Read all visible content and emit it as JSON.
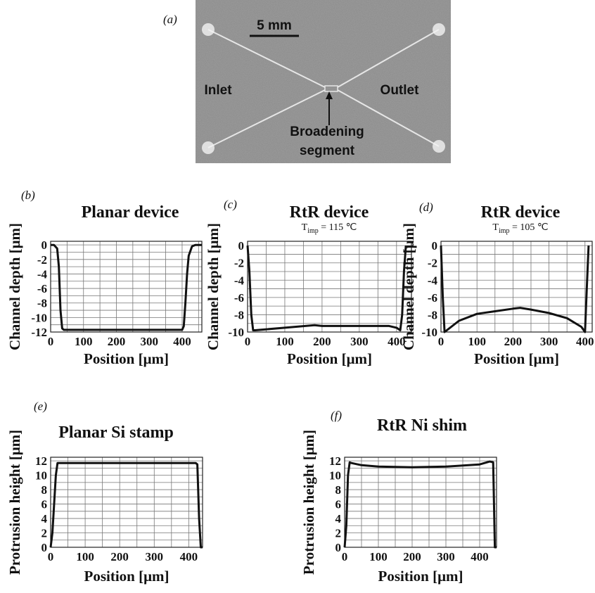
{
  "photo": {
    "panel": "(a)",
    "scale_bar": "5 mm",
    "inlet": "Inlet",
    "outlet": "Outlet",
    "segment_label": [
      "Broadening",
      "segment"
    ]
  },
  "chart_data": [
    {
      "type": "line",
      "panel": "(b)",
      "title": "Planar device",
      "x_label": "Position [μm]",
      "y_label": "Channel depth [μm]",
      "xlim": [
        0,
        460
      ],
      "xticks": [
        0,
        100,
        200,
        300,
        400
      ],
      "xminor": [
        50,
        150,
        250,
        350,
        450
      ],
      "ylim": [
        -12,
        0.5
      ],
      "yticks": [
        0,
        -2,
        -4,
        -6,
        -8,
        -10,
        -12
      ],
      "yminor": [
        -1,
        -3,
        -5,
        -7,
        -9,
        -11
      ],
      "grid": true,
      "x": [
        0,
        10,
        20,
        25,
        30,
        35,
        40,
        100,
        200,
        300,
        400,
        405,
        410,
        415,
        420,
        430,
        440,
        460
      ],
      "series": [
        {
          "color": "#111111",
          "values": [
            0,
            0,
            -0.5,
            -3,
            -9,
            -11.5,
            -11.7,
            -11.7,
            -11.7,
            -11.7,
            -11.7,
            -11.2,
            -8,
            -4,
            -1.5,
            -0.2,
            0,
            0
          ]
        }
      ]
    },
    {
      "type": "line",
      "panel": "(c)",
      "title": "RtR device",
      "subtitle_parts": [
        "T",
        "imp",
        " = 115 ℃"
      ],
      "x_label": "Position [μm]",
      "y_label": "Channel depth [μm]",
      "xlim": [
        0,
        440
      ],
      "xticks": [
        0,
        100,
        200,
        300,
        400
      ],
      "xminor": [
        50,
        150,
        250,
        350
      ],
      "ylim": [
        -10,
        0.5
      ],
      "yticks": [
        0,
        -2,
        -4,
        -6,
        -8,
        -10
      ],
      "yminor": [
        -1,
        -3,
        -5,
        -7,
        -9
      ],
      "grid": true,
      "x": [
        0,
        5,
        10,
        15,
        20,
        100,
        180,
        200,
        300,
        380,
        400,
        410,
        415,
        420,
        425
      ],
      "series": [
        {
          "color": "#111111",
          "values": [
            0,
            -3,
            -8,
            -9.8,
            -9.8,
            -9.5,
            -9.2,
            -9.3,
            -9.3,
            -9.3,
            -9.5,
            -9.8,
            -8,
            -3,
            0
          ]
        }
      ]
    },
    {
      "type": "line",
      "panel": "(d)",
      "title": "RtR device",
      "subtitle_parts": [
        "T",
        "imp",
        " = 105 ℃"
      ],
      "x_label": "Position [μm]",
      "y_label": "Channel depth [μm]",
      "xlim": [
        0,
        420
      ],
      "xticks": [
        0,
        100,
        200,
        300,
        400
      ],
      "xminor": [
        50,
        150,
        250,
        350
      ],
      "ylim": [
        -10,
        0.5
      ],
      "yticks": [
        0,
        -2,
        -4,
        -6,
        -8,
        -10
      ],
      "yminor": [
        -1,
        -3,
        -5,
        -7,
        -9
      ],
      "grid": true,
      "x": [
        0,
        5,
        10,
        50,
        100,
        150,
        200,
        220,
        250,
        300,
        350,
        390,
        400,
        405,
        410
      ],
      "series": [
        {
          "color": "#111111",
          "values": [
            0,
            -6,
            -10,
            -8.7,
            -7.9,
            -7.6,
            -7.3,
            -7.2,
            -7.4,
            -7.8,
            -8.4,
            -9.4,
            -10,
            -5,
            0
          ]
        }
      ]
    },
    {
      "type": "line",
      "panel": "(e)",
      "title": "Planar Si stamp",
      "x_label": "Position [μm]",
      "y_label": "Protrusion height [μm]",
      "xlim": [
        0,
        440
      ],
      "xticks": [
        0,
        100,
        200,
        300,
        400
      ],
      "xminor": [
        50,
        150,
        250,
        350
      ],
      "ylim": [
        0,
        12.5
      ],
      "yticks": [
        0,
        2,
        4,
        6,
        8,
        10,
        12
      ],
      "yminor": [
        1,
        3,
        5,
        7,
        9,
        11
      ],
      "grid": true,
      "x": [
        0,
        5,
        15,
        20,
        30,
        400,
        420,
        425,
        430,
        435,
        440
      ],
      "series": [
        {
          "color": "#111111",
          "values": [
            0,
            2,
            10,
            11.7,
            11.7,
            11.7,
            11.7,
            11.5,
            4,
            0,
            0
          ]
        }
      ]
    },
    {
      "type": "line",
      "panel": "(f)",
      "title": "RtR Ni shim",
      "x_label": "Position [μm]",
      "y_label": "Protrusion height [μm]",
      "xlim": [
        0,
        450
      ],
      "xticks": [
        0,
        100,
        200,
        300,
        400
      ],
      "xminor": [
        50,
        150,
        250,
        350
      ],
      "ylim": [
        0,
        12.5
      ],
      "yticks": [
        0,
        2,
        4,
        6,
        8,
        10,
        12
      ],
      "yminor": [
        1,
        3,
        5,
        7,
        9,
        11
      ],
      "grid": true,
      "x": [
        0,
        5,
        10,
        15,
        20,
        50,
        100,
        200,
        300,
        400,
        430,
        440,
        443,
        445,
        450
      ],
      "series": [
        {
          "color": "#111111",
          "values": [
            0,
            3,
            10,
            11.8,
            11.7,
            11.4,
            11.2,
            11.1,
            11.2,
            11.5,
            11.9,
            11.8,
            5,
            0,
            0
          ]
        }
      ]
    }
  ]
}
